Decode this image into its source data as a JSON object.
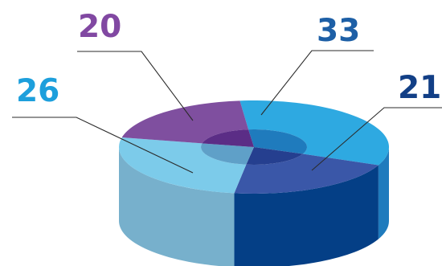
{
  "chart_data": {
    "type": "pie",
    "style": "3d-donut",
    "categories": [
      "",
      "",
      "",
      ""
    ],
    "values": [
      33,
      21,
      26,
      20
    ],
    "data_labels": [
      "33",
      "21",
      "26",
      "20"
    ],
    "colors": {
      "top": [
        "#2ea9e1",
        "#3a57a8",
        "#7ccbea",
        "#7f4f9f"
      ],
      "side": [
        "#1f7bbd",
        "#043f86",
        "#77b0cc",
        "#5a2f80"
      ],
      "hole": [
        "#1f7bbd",
        "#253f8f",
        "#5fa0c8",
        "#5b2d86"
      ],
      "label": [
        "#1d5fa6",
        "#123f86",
        "#1d9fdc",
        "#8148a2"
      ]
    },
    "title": "",
    "legend": "none"
  }
}
